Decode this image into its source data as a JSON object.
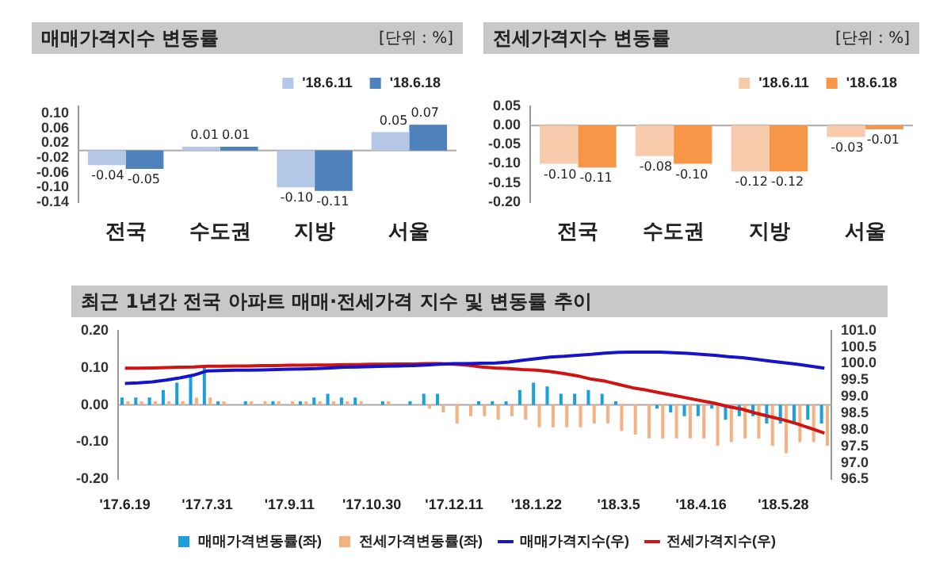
{
  "chart_data": [
    {
      "type": "bar",
      "title": "매매가격지수 변동률",
      "annotations": [
        "[단위 : %]"
      ],
      "categories": [
        "전국",
        "수도권",
        "지방",
        "서울"
      ],
      "series": [
        {
          "name": "'18.6.11",
          "color": "#b4c7e7",
          "values": [
            -0.04,
            0.01,
            -0.1,
            0.05
          ],
          "value_labels": [
            "-0.04",
            "0.01",
            "-0.10",
            "0.05"
          ]
        },
        {
          "name": "'18.6.18",
          "color": "#4f81bd",
          "values": [
            -0.05,
            0.01,
            -0.11,
            0.07
          ],
          "value_labels": [
            "-0.05",
            "0.01",
            "-0.11",
            "0.07"
          ]
        }
      ],
      "ylim": [
        -0.14,
        0.12
      ],
      "yticks": [
        {
          "value": -0.14,
          "label": "-0.14"
        },
        {
          "value": -0.1,
          "label": "-0.10"
        },
        {
          "value": -0.06,
          "label": "-0.06"
        },
        {
          "value": -0.02,
          "label": "-0.02"
        },
        {
          "value": 0.02,
          "label": "0.02"
        },
        {
          "value": 0.06,
          "label": "0.06"
        },
        {
          "value": 0.1,
          "label": "0.10"
        }
      ],
      "grid": false,
      "legend": "top right",
      "ref_lines": [
        {
          "axis": "y",
          "value": 0
        }
      ]
    },
    {
      "type": "bar",
      "title": "전세가격지수 변동률",
      "annotations": [
        "[단위 : %]"
      ],
      "categories": [
        "전국",
        "수도권",
        "지방",
        "서울"
      ],
      "series": [
        {
          "name": "'18.6.11",
          "color": "#f8cbad",
          "values": [
            -0.1,
            -0.08,
            -0.12,
            -0.03
          ],
          "value_labels": [
            "-0.10",
            "-0.08",
            "-0.12",
            "-0.03"
          ]
        },
        {
          "name": "'18.6.18",
          "color": "#f79646",
          "values": [
            -0.11,
            -0.1,
            -0.12,
            -0.01
          ],
          "value_labels": [
            "-0.11",
            "-0.10",
            "-0.12",
            "-0.01"
          ]
        }
      ],
      "ylim": [
        -0.2,
        0.05
      ],
      "yticks": [
        {
          "value": -0.2,
          "label": "-0.20"
        },
        {
          "value": -0.15,
          "label": "-0.15"
        },
        {
          "value": -0.1,
          "label": "-0.10"
        },
        {
          "value": -0.05,
          "label": "-0.05"
        },
        {
          "value": 0,
          "label": "0.00"
        },
        {
          "value": 0.05,
          "label": "0.05"
        }
      ],
      "grid": false,
      "legend": "top right",
      "ref_lines": [
        {
          "axis": "y",
          "value": 0
        }
      ]
    },
    {
      "type": "bar",
      "title": "최근 1년간 전국 아파트 매매·전세가격 지수 및 변동률 추이",
      "categories": [
        "'17.6.19",
        null,
        null,
        null,
        null,
        null,
        "'17.7.31",
        null,
        null,
        null,
        null,
        null,
        "'17.9.11",
        null,
        null,
        null,
        null,
        null,
        "'17.10.30",
        null,
        null,
        null,
        null,
        null,
        "'17.12.11",
        null,
        null,
        null,
        null,
        null,
        "'18.1.22",
        null,
        null,
        null,
        null,
        null,
        "'18.3.5",
        null,
        null,
        null,
        null,
        null,
        "'18.4.16",
        null,
        null,
        null,
        null,
        null,
        "'18.5.28",
        null,
        null,
        null
      ],
      "series": [
        {
          "name": "매매가격변동률(좌)",
          "color": "#1ca0dc",
          "values": [
            0.02,
            0.02,
            0.02,
            0.04,
            0.06,
            0.08,
            0.1,
            0.01,
            0.0,
            0.01,
            0.0,
            0.01,
            0.0,
            0.01,
            0.02,
            0.03,
            0.02,
            0.02,
            0.0,
            0.01,
            0.0,
            0.01,
            0.03,
            0.03,
            0.0,
            0.0,
            0.01,
            0.01,
            0.01,
            0.04,
            0.06,
            0.05,
            0.03,
            0.03,
            0.04,
            0.03,
            0.01,
            0.0,
            0.0,
            -0.01,
            -0.02,
            -0.03,
            -0.03,
            -0.01,
            -0.04,
            -0.03,
            -0.03,
            -0.05,
            -0.05,
            -0.05,
            -0.04,
            -0.05
          ]
        },
        {
          "name": "전세가격변동률(좌)",
          "color": "#f4b183",
          "values": [
            0.01,
            0.01,
            0.01,
            0.01,
            0.01,
            0.02,
            0.02,
            0.01,
            0.0,
            0.01,
            0.01,
            0.01,
            0.01,
            0.01,
            0.01,
            0.01,
            0.01,
            0.01,
            0.0,
            0.01,
            0.0,
            0.0,
            -0.01,
            -0.02,
            -0.05,
            -0.03,
            -0.03,
            -0.04,
            -0.03,
            -0.04,
            -0.06,
            -0.06,
            -0.06,
            -0.06,
            -0.05,
            -0.05,
            -0.07,
            -0.08,
            -0.09,
            -0.09,
            -0.09,
            -0.09,
            -0.09,
            -0.11,
            -0.1,
            -0.09,
            -0.09,
            -0.11,
            -0.13,
            -0.1,
            -0.1,
            -0.11
          ]
        },
        {
          "name": "매매가격지수(우)",
          "type": "line",
          "axis": "y2",
          "color": "#1414c8",
          "values": [
            99.4,
            99.42,
            99.45,
            99.5,
            99.57,
            99.65,
            99.78,
            99.79,
            99.8,
            99.8,
            99.81,
            99.82,
            99.83,
            99.84,
            99.85,
            99.87,
            99.89,
            99.9,
            99.91,
            99.92,
            99.93,
            99.94,
            99.96,
            99.98,
            100.0,
            100.0,
            100.01,
            100.02,
            100.05,
            100.1,
            100.15,
            100.2,
            100.22,
            100.25,
            100.28,
            100.32,
            100.34,
            100.35,
            100.35,
            100.35,
            100.33,
            100.31,
            100.28,
            100.25,
            100.21,
            100.18,
            100.13,
            100.08,
            100.03,
            99.98,
            99.92,
            99.86
          ]
        },
        {
          "name": "전세가격지수(우)",
          "type": "line",
          "axis": "y2",
          "color": "#d01414",
          "values": [
            99.86,
            99.86,
            99.87,
            99.88,
            99.89,
            99.9,
            99.92,
            99.92,
            99.93,
            99.93,
            99.94,
            99.94,
            99.95,
            99.95,
            99.96,
            99.96,
            99.97,
            99.97,
            99.98,
            99.98,
            99.99,
            99.99,
            100.0,
            100.0,
            99.98,
            99.95,
            99.9,
            99.87,
            99.85,
            99.82,
            99.8,
            99.76,
            99.7,
            99.63,
            99.53,
            99.47,
            99.37,
            99.27,
            99.2,
            99.12,
            99.04,
            98.96,
            98.88,
            98.8,
            98.7,
            98.62,
            98.5,
            98.4,
            98.3,
            98.18,
            98.04,
            97.9
          ]
        }
      ],
      "ylim": [
        -0.2,
        0.2
      ],
      "yticks": [
        {
          "value": -0.2,
          "label": "-0.20"
        },
        {
          "value": -0.1,
          "label": "-0.10"
        },
        {
          "value": 0,
          "label": "0.00"
        },
        {
          "value": 0.1,
          "label": "0.10"
        },
        {
          "value": 0.2,
          "label": "0.20"
        }
      ],
      "y2lim": [
        96.5,
        101
      ],
      "y2ticks": [
        {
          "value": 96.5,
          "label": "96.5"
        },
        {
          "value": 97,
          "label": "97.0"
        },
        {
          "value": 97.5,
          "label": "97.5"
        },
        {
          "value": 98,
          "label": "98.0"
        },
        {
          "value": 98.5,
          "label": "98.5"
        },
        {
          "value": 99,
          "label": "99.0"
        },
        {
          "value": 99.5,
          "label": "99.5"
        },
        {
          "value": 100,
          "label": "100.0"
        },
        {
          "value": 100.5,
          "label": "100.5"
        },
        {
          "value": 101,
          "label": "101.0"
        }
      ],
      "grid": false,
      "legend": "bottom",
      "ref_lines": [
        {
          "axis": "y",
          "value": 0
        }
      ]
    }
  ]
}
